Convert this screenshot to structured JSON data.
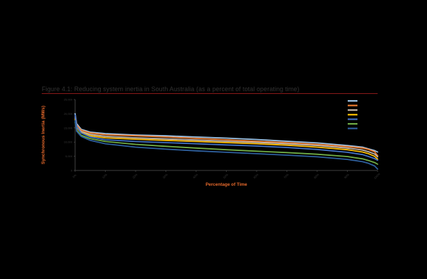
{
  "figure": {
    "title": "Figure 4.1: Reducing system inertia in South Australia (as a percent of total operating time)"
  },
  "chart_data": {
    "type": "line",
    "title": "Figure 4.1: Reducing system inertia in South Australia (as a percent of total operating time)",
    "xlabel": "Percentage of Time",
    "ylabel": "Synchronous Inertia (MWs)",
    "x_ticks": [
      "0%",
      "10%",
      "20%",
      "30%",
      "40%",
      "50%",
      "60%",
      "70%",
      "80%",
      "90%",
      "100%"
    ],
    "y_ticks": [
      "0",
      "5,000",
      "10,000",
      "15,000",
      "20,000",
      "25,000"
    ],
    "xlim": [
      0,
      100
    ],
    "ylim": [
      0,
      25000
    ],
    "grid": false,
    "legend_position": "top-right",
    "x": [
      0,
      0.5,
      2,
      5,
      10,
      20,
      30,
      40,
      50,
      60,
      70,
      80,
      90,
      95,
      97,
      99,
      100
    ],
    "series": [
      {
        "name": "",
        "color": "#9dc3e6",
        "values": [
          20000,
          16500,
          14500,
          13500,
          13000,
          12500,
          12200,
          11800,
          11400,
          10900,
          10300,
          9700,
          8800,
          8200,
          7600,
          7000,
          6500
        ]
      },
      {
        "name": "",
        "color": "#ed7d31",
        "values": [
          19000,
          16000,
          14200,
          13200,
          12600,
          12200,
          11800,
          11300,
          10800,
          10300,
          9800,
          9200,
          8400,
          7900,
          7400,
          6600,
          5200
        ]
      },
      {
        "name": "",
        "color": "#c9b8a8",
        "values": [
          18500,
          15500,
          13700,
          12700,
          12000,
          11500,
          11100,
          10700,
          10300,
          9900,
          9400,
          8800,
          7900,
          7200,
          6600,
          5800,
          4800
        ]
      },
      {
        "name": "",
        "color": "#ffc000",
        "values": [
          18000,
          15000,
          13300,
          12200,
          11500,
          11000,
          10600,
          10200,
          9800,
          9400,
          8900,
          8200,
          7300,
          6500,
          5900,
          5000,
          4000
        ]
      },
      {
        "name": "",
        "color": "#4472c4",
        "values": [
          19500,
          15500,
          13200,
          11800,
          10800,
          10200,
          9800,
          9400,
          9000,
          8600,
          8100,
          7400,
          6400,
          5600,
          4900,
          4200,
          3600
        ]
      },
      {
        "name": "",
        "color": "#70ad47",
        "values": [
          17000,
          14200,
          12400,
          11200,
          10200,
          9200,
          8500,
          7900,
          7300,
          6800,
          6300,
          5700,
          4900,
          4100,
          3500,
          2800,
          2200
        ]
      },
      {
        "name": "",
        "color": "#2e5f9e",
        "values": [
          17500,
          13800,
          12000,
          10600,
          9400,
          8200,
          7500,
          6900,
          6400,
          5900,
          5400,
          4800,
          3900,
          3100,
          2500,
          1600,
          500
        ]
      }
    ]
  }
}
